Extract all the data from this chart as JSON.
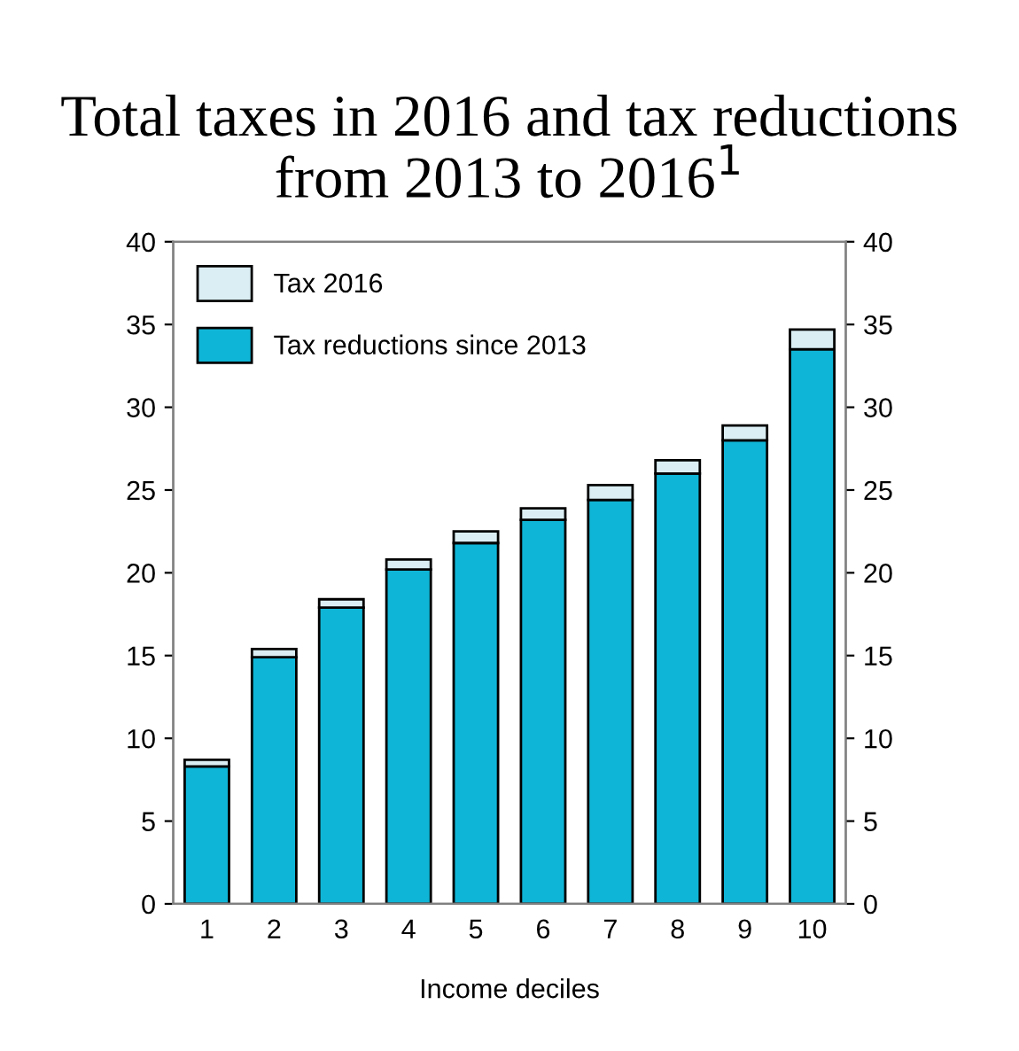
{
  "chart_data": {
    "type": "bar",
    "title": "Total taxes in 2016 and tax reductions from 2013 to 2016$^{1}$",
    "xlabel": "Income deciles",
    "categories": [
      "1",
      "2",
      "3",
      "4",
      "5",
      "6",
      "7",
      "8",
      "9",
      "10"
    ],
    "stacked": true,
    "series": [
      {
        "name": "Tax reductions since 2013",
        "color": "#0fb5d6",
        "values": [
          8.3,
          14.9,
          17.9,
          20.2,
          21.8,
          23.2,
          24.4,
          26.0,
          28.0,
          33.5
        ]
      },
      {
        "name": "Tax 2016",
        "color": "#daeef3",
        "values": [
          0.4,
          0.5,
          0.5,
          0.6,
          0.7,
          0.7,
          0.9,
          0.8,
          0.9,
          1.2
        ]
      }
    ],
    "ylim": [
      0,
      40
    ],
    "yticks": [
      0,
      5,
      10,
      15,
      20,
      25,
      30,
      35,
      40
    ],
    "y2lim": [
      0,
      40
    ],
    "y2ticks": [
      0,
      5,
      10,
      15,
      20,
      25,
      30,
      35,
      40
    ],
    "legend": "top left",
    "grid": false
  }
}
